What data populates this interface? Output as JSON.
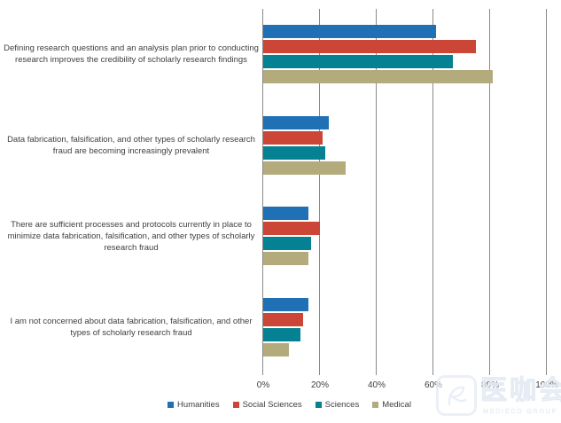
{
  "watermark": {
    "text": "医咖会",
    "subtext": "MEDIECO GROUP"
  },
  "chart_data": {
    "type": "bar",
    "orientation": "horizontal",
    "title": "",
    "xlabel": "",
    "ylabel": "",
    "xlim": [
      0,
      100
    ],
    "grid": "vertical",
    "legend_position": "bottom",
    "x_ticks": [
      {
        "label": "0%",
        "value": 0
      },
      {
        "label": "20%",
        "value": 20
      },
      {
        "label": "40%",
        "value": 40
      },
      {
        "label": "60%",
        "value": 60
      },
      {
        "label": "80%",
        "value": 80
      },
      {
        "label": "100%",
        "value": 100
      }
    ],
    "categories": [
      "Defining research questions and an analysis plan prior to conducting research improves the credibility of scholarly research findings",
      "Data fabrication, falsification, and other types of scholarly research fraud are becoming increasingly prevalent",
      "There are sufficient processes and protocols currently in place to minimize data fabrication, falsification, and other types of scholarly research fraud",
      "I am not concerned about data fabrication, falsification, and other types of scholarly research fraud"
    ],
    "series": [
      {
        "name": "Humanities",
        "color": "#1F70B4",
        "values": [
          61,
          23,
          16,
          16
        ]
      },
      {
        "name": "Social Sciences",
        "color": "#CB4636",
        "values": [
          75,
          21,
          20,
          14
        ]
      },
      {
        "name": "Sciences",
        "color": "#048193",
        "values": [
          67,
          22,
          17,
          13
        ]
      },
      {
        "name": "Medical",
        "color": "#B4AB7D",
        "values": [
          81,
          29,
          16,
          9
        ]
      }
    ]
  }
}
